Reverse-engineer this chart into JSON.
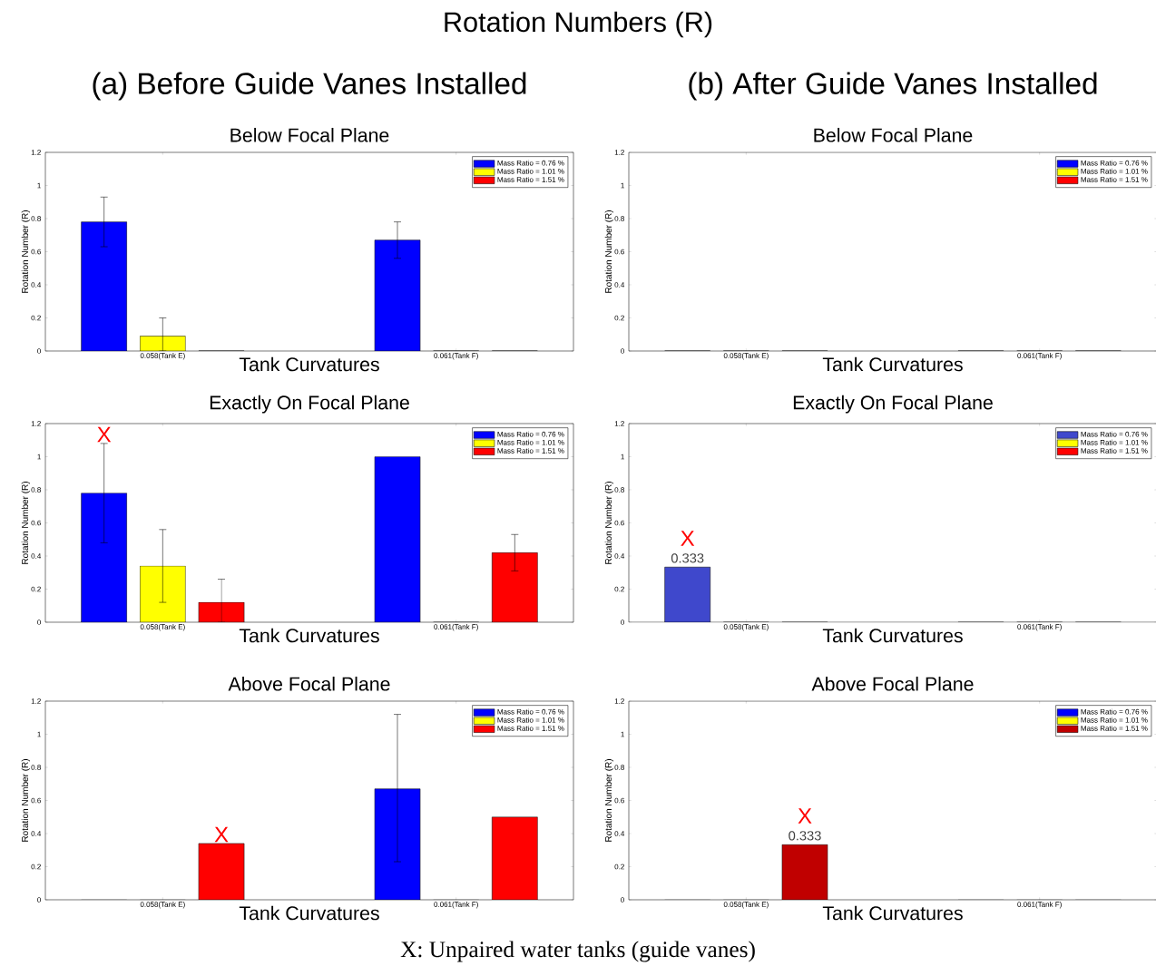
{
  "chart_data": [
    {
      "type": "bar",
      "title": "Below Focal Plane",
      "subtitle": "(a) Before Guide Vanes Installed",
      "xlabel": "Tank Curvatures",
      "ylabel": "Rotation Number (R)",
      "annotations": [
        "Rotation Numbers (R)"
      ],
      "categories": [
        "0.058(Tank E)",
        "0.061(Tank F)"
      ],
      "ylim": [
        0,
        1.2
      ],
      "yticks": [
        0,
        0.2,
        0.4,
        0.6,
        0.8,
        1,
        1.2
      ],
      "legend": "top right",
      "series": [
        {
          "name": "Mass Ratio = 0.76 %",
          "color": "#0000ff",
          "values": [
            0.78,
            0.67
          ],
          "errors": [
            [
              0.63,
              0.93
            ],
            [
              0.56,
              0.78
            ]
          ]
        },
        {
          "name": "Mass Ratio = 1.01 %",
          "color": "#ffff00",
          "values": [
            0.09,
            0
          ],
          "errors": [
            [
              0,
              0.2
            ],
            null
          ]
        },
        {
          "name": "Mass Ratio = 1.51 %",
          "color": "#ff0000",
          "values": [
            0,
            0
          ]
        }
      ]
    },
    {
      "type": "bar",
      "title": "Below Focal Plane",
      "subtitle": "(b) After Guide Vanes Installed",
      "xlabel": "Tank Curvatures",
      "ylabel": "Rotation Number (R)",
      "categories": [
        "0.058(Tank E)",
        "0.061(Tank F)"
      ],
      "ylim": [
        0,
        1.2
      ],
      "yticks": [
        0,
        0.2,
        0.4,
        0.6,
        0.8,
        1,
        1.2
      ],
      "legend": "top right",
      "series": [
        {
          "name": "Mass Ratio = 0.76 %",
          "color": "#0000ff",
          "values": [
            0,
            0
          ]
        },
        {
          "name": "Mass Ratio = 1.01 %",
          "color": "#ffff00",
          "values": [
            0,
            0
          ]
        },
        {
          "name": "Mass Ratio = 1.51 %",
          "color": "#ff0000",
          "values": [
            0,
            0
          ]
        }
      ]
    },
    {
      "type": "bar",
      "title": "Exactly On Focal Plane",
      "xlabel": "Tank Curvatures",
      "ylabel": "Rotation Number (R)",
      "annotations": [
        "X"
      ],
      "categories": [
        "0.058(Tank E)",
        "0.061(Tank F)"
      ],
      "ylim": [
        0,
        1.2
      ],
      "yticks": [
        0,
        0.2,
        0.4,
        0.6,
        0.8,
        1,
        1.2
      ],
      "legend": "top right",
      "series": [
        {
          "name": "Mass Ratio = 0.76 %",
          "color": "#0000ff",
          "values": [
            0.78,
            1.0
          ],
          "errors": [
            [
              0.48,
              1.08
            ],
            null
          ]
        },
        {
          "name": "Mass Ratio = 1.01 %",
          "color": "#ffff00",
          "values": [
            0.34,
            0
          ],
          "errors": [
            [
              0.12,
              0.56
            ],
            null
          ]
        },
        {
          "name": "Mass Ratio = 1.51 %",
          "color": "#ff0000",
          "values": [
            0.12,
            0.42
          ],
          "errors": [
            [
              0,
              0.26
            ],
            [
              0.31,
              0.53
            ]
          ]
        }
      ]
    },
    {
      "type": "bar",
      "title": "Exactly On Focal Plane",
      "xlabel": "Tank Curvatures",
      "ylabel": "Rotation Number (R)",
      "annotations": [
        "X"
      ],
      "categories": [
        "0.058(Tank E)",
        "0.061(Tank F)"
      ],
      "ylim": [
        0,
        1.2
      ],
      "yticks": [
        0,
        0.2,
        0.4,
        0.6,
        0.8,
        1,
        1.2
      ],
      "legend": "top right",
      "series": [
        {
          "name": "Mass Ratio = 0.76 %",
          "color": "#3f48cc",
          "values": [
            0.333,
            0
          ],
          "value_labels": [
            "0.333",
            null
          ]
        },
        {
          "name": "Mass Ratio = 1.01 %",
          "color": "#ffff00",
          "values": [
            0,
            0
          ]
        },
        {
          "name": "Mass Ratio = 1.51 %",
          "color": "#ff0000",
          "values": [
            0,
            0
          ]
        }
      ]
    },
    {
      "type": "bar",
      "title": "Above Focal Plane",
      "xlabel": "Tank Curvatures",
      "ylabel": "Rotation Number (R)",
      "annotations": [
        "X",
        "X: Unpaired water tanks (guide vanes)"
      ],
      "categories": [
        "0.058(Tank E)",
        "0.061(Tank F)"
      ],
      "ylim": [
        0,
        1.2
      ],
      "yticks": [
        0,
        0.2,
        0.4,
        0.6,
        0.8,
        1,
        1.2
      ],
      "legend": "top right",
      "series": [
        {
          "name": "Mass Ratio = 0.76 %",
          "color": "#0000ff",
          "values": [
            0,
            0.67
          ],
          "errors": [
            null,
            [
              0.23,
              1.12
            ]
          ]
        },
        {
          "name": "Mass Ratio = 1.01 %",
          "color": "#ffff00",
          "values": [
            0,
            0
          ]
        },
        {
          "name": "Mass Ratio = 1.51 %",
          "color": "#ff0000",
          "values": [
            0.34,
            0.5
          ]
        }
      ]
    },
    {
      "type": "bar",
      "title": "Above Focal Plane",
      "xlabel": "Tank Curvatures",
      "ylabel": "Rotation Number (R)",
      "annotations": [
        "X"
      ],
      "categories": [
        "0.058(Tank E)",
        "0.061(Tank F)"
      ],
      "ylim": [
        0,
        1.2
      ],
      "yticks": [
        0,
        0.2,
        0.4,
        0.6,
        0.8,
        1,
        1.2
      ],
      "legend": "top right",
      "series": [
        {
          "name": "Mass Ratio = 0.76 %",
          "color": "#0000ff",
          "values": [
            0,
            0
          ]
        },
        {
          "name": "Mass Ratio = 1.01 %",
          "color": "#ffff00",
          "values": [
            0,
            0
          ]
        },
        {
          "name": "Mass Ratio = 1.51 %",
          "color": "#c00000",
          "values": [
            0.333,
            0
          ],
          "value_labels": [
            "0.333",
            null
          ]
        }
      ]
    }
  ]
}
